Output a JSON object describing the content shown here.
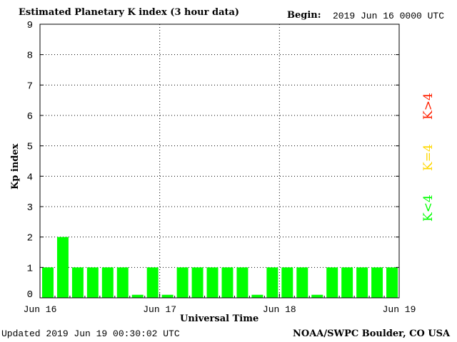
{
  "header": {
    "title": "Estimated Planetary K index (3 hour data)",
    "begin_label": "Begin:",
    "begin_value": "2019 Jun 16 0000 UTC"
  },
  "footer": {
    "updated": "Updated 2019 Jun 19 00:30:02 UTC",
    "source": "NOAA/SWPC Boulder, CO USA"
  },
  "legend": {
    "low": "K<4",
    "mid": "K=4",
    "high": "K>4"
  },
  "colors": {
    "low": "#00ff00",
    "mid": "#ffd700",
    "high": "#ff2000"
  },
  "chart_data": {
    "type": "bar",
    "title": "Estimated Planetary K index (3 hour data)",
    "xlabel": "Universal Time",
    "ylabel": "Kp index",
    "ylim": [
      0,
      9
    ],
    "yticks": [
      0,
      1,
      2,
      3,
      4,
      5,
      6,
      7,
      8,
      9
    ],
    "x_day_labels": [
      "Jun 16",
      "Jun 17",
      "Jun 18",
      "Jun 19"
    ],
    "grid": "dotted at day boundaries and integer Kp",
    "values": [
      1,
      2,
      1,
      1,
      1,
      1,
      0.1,
      1,
      0.1,
      1,
      1,
      1,
      1,
      1,
      0.1,
      1,
      1,
      1,
      0.1,
      1,
      1,
      1,
      1,
      1
    ]
  }
}
